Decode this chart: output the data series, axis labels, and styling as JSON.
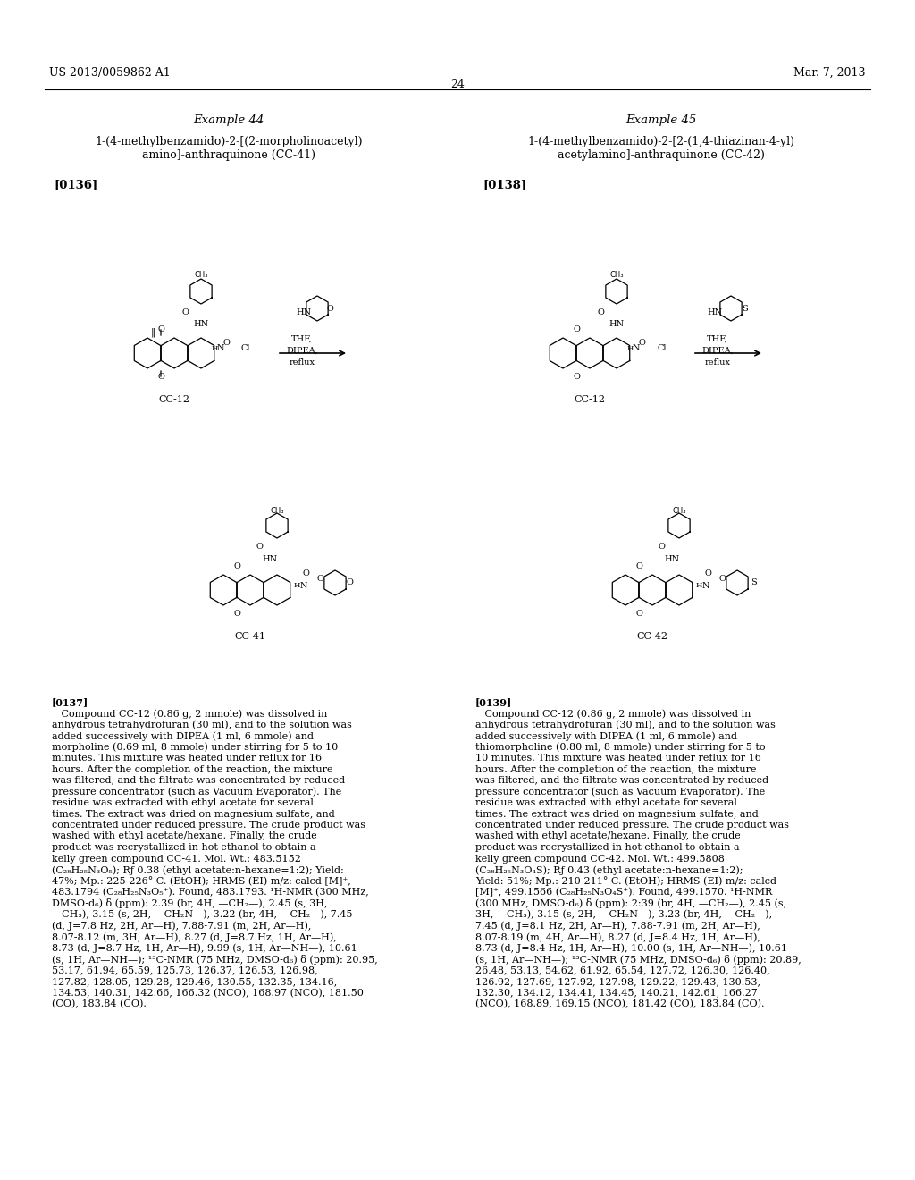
{
  "page_header_left": "US 2013/0059862 A1",
  "page_header_right": "Mar. 7, 2013",
  "page_number": "24",
  "background_color": "#ffffff",
  "text_color": "#000000",
  "example44_title": "Example 44",
  "example44_compound": "1-(4-methylbenzamido)-2-[(2-morpholinoacetyl)\namino]-anthraquinone (CC-41)",
  "example44_ref": "[0136]",
  "example44_reactant_label": "CC-12",
  "example44_product_label": "CC-41",
  "example44_reagents": "THF,\nDIPEA,\nreflux",
  "example45_title": "Example 45",
  "example45_compound": "1-(4-methylbenzamido)-2-[2-(1,4-thiazinan-4-yl)\nacetylamino]-anthraquinone (CC-42)",
  "example45_ref": "[0138]",
  "example45_reactant_label": "CC-12",
  "example45_product_label": "CC-42",
  "example45_reagents": "THF,\nDIPEA,\nreflux",
  "para137_bold": "[0137]",
  "para137_text": "   Compound CC-12 (0.86 g, 2 mmole) was dissolved in anhydrous tetrahydrofuran (30 ml), and to the solution was added successively with DIPEA (1 ml, 6 mmole) and morpholine (0.69 ml, 8 mmole) under stirring for 5 to 10 minutes. This mixture was heated under reflux for 16 hours. After the completion of the reaction, the mixture was filtered, and the filtrate was concentrated by reduced pressure concentrator (such as Vacuum Evaporator). The residue was extracted with ethyl acetate for several times. The extract was dried on magnesium sulfate, and concentrated under reduced pressure. The crude product was washed with ethyl acetate/hexane. Finally, the crude product was recrystallized in hot ethanol to obtain a kelly green compound CC-41. Mol. Wt.: 483.5152 (C₂₈H₂₅N₃O₅); Rƒ 0.38 (ethyl acetate:n-hexane=1:2); Yield: 47%; Mp.: 225-226° C. (EtOH); HRMS (EI) m/z: calcd [M]⁺, 483.1794 (C₂₈H₂₅N₃O₅⁺). Found, 483.1793. ¹H-NMR (300 MHz, DMSO-d₆) δ (ppm): 2.39 (br, 4H, —CH₂—), 2.45 (s, 3H, —CH₃), 3.15 (s, 2H, —CH₂N—), 3.22 (br, 4H, —CH₂—), 7.45 (d, J=7.8 Hz, 2H, Ar—H), 7.88-7.91 (m, 2H, Ar—H), 8.07-8.12 (m, 3H, Ar—H), 8.27 (d, J=8.7 Hz, 1H, Ar—H), 8.73 (d, J=8.7 Hz, 1H, Ar—H), 9.99 (s, 1H, Ar—NH—), 10.61 (s, 1H, Ar—NH—); ¹³C-NMR (75 MHz, DMSO-d₆) δ (ppm): 20.95, 53.17, 61.94, 65.59, 125.73, 126.37, 126.53, 126.98, 127.82, 128.05, 129.28, 129.46, 130.55, 132.35, 134.16, 134.53, 140.31, 142.66, 166.32 (NCO), 168.97 (NCO), 181.50 (CO), 183.84 (CO).",
  "para139_bold": "[0139]",
  "para139_text": "   Compound CC-12 (0.86 g, 2 mmole) was dissolved in anhydrous tetrahydrofuran (30 ml), and to the solution was added successively with DIPEA (1 ml, 6 mmole) and thiomorpholine (0.80 ml, 8 mmole) under stirring for 5 to 10 minutes. This mixture was heated under reflux for 16 hours. After the completion of the reaction, the mixture was filtered, and the filtrate was concentrated by reduced pressure concentrator (such as Vacuum Evaporator). The residue was extracted with ethyl acetate for several times. The extract was dried on magnesium sulfate, and concentrated under reduced pressure. The crude product was washed with ethyl acetate/hexane. Finally, the crude product was recrystallized in hot ethanol to obtain a kelly green compound CC-42. Mol. Wt.: 499.5808 (C₂₈H₂₅N₃O₄S); Rƒ 0.43 (ethyl acetate:n-hexane=1:2); Yield: 51%; Mp.: 210-211° C. (EtOH); HRMS (EI) m/z: calcd [M]⁺, 499.1566 (C₂₈H₂₅N₃O₄S⁺). Found, 499.1570. ¹H-NMR (300 MHz, DMSO-d₆) δ (ppm): 2:39 (br, 4H, —CH₂—), 2.45 (s, 3H, —CH₃), 3.15 (s, 2H, —CH₂N—), 3.23 (br, 4H, —CH₂—), 7.45 (d, J=8.1 Hz, 2H, Ar—H), 7.88-7.91 (m, 2H, Ar—H), 8.07-8.19 (m, 4H, Ar—H), 8.27 (d, J=8.4 Hz, 1H, Ar—H), 8.73 (d, J=8.4 Hz, 1H, Ar—H), 10.00 (s, 1H, Ar—NH—), 10.61 (s, 1H, Ar—NH—); ¹³C-NMR (75 MHz, DMSO-d₆) δ (ppm): 20.89, 26.48, 53.13, 54.62, 61.92, 65.54, 127.72, 126.30, 126.40, 126.92, 127.69, 127.92, 127.98, 129.22, 129.43, 130.53, 132.30, 134.12, 134.41, 134.45, 140.21, 142.61, 166.27 (NCO), 168.89, 169.15 (NCO), 181.42 (CO), 183.84 (CO).",
  "font_size_header": 9,
  "font_size_body": 8.5,
  "font_size_example_title": 9.5,
  "font_size_compound_name": 9,
  "font_size_ref": 9.5
}
